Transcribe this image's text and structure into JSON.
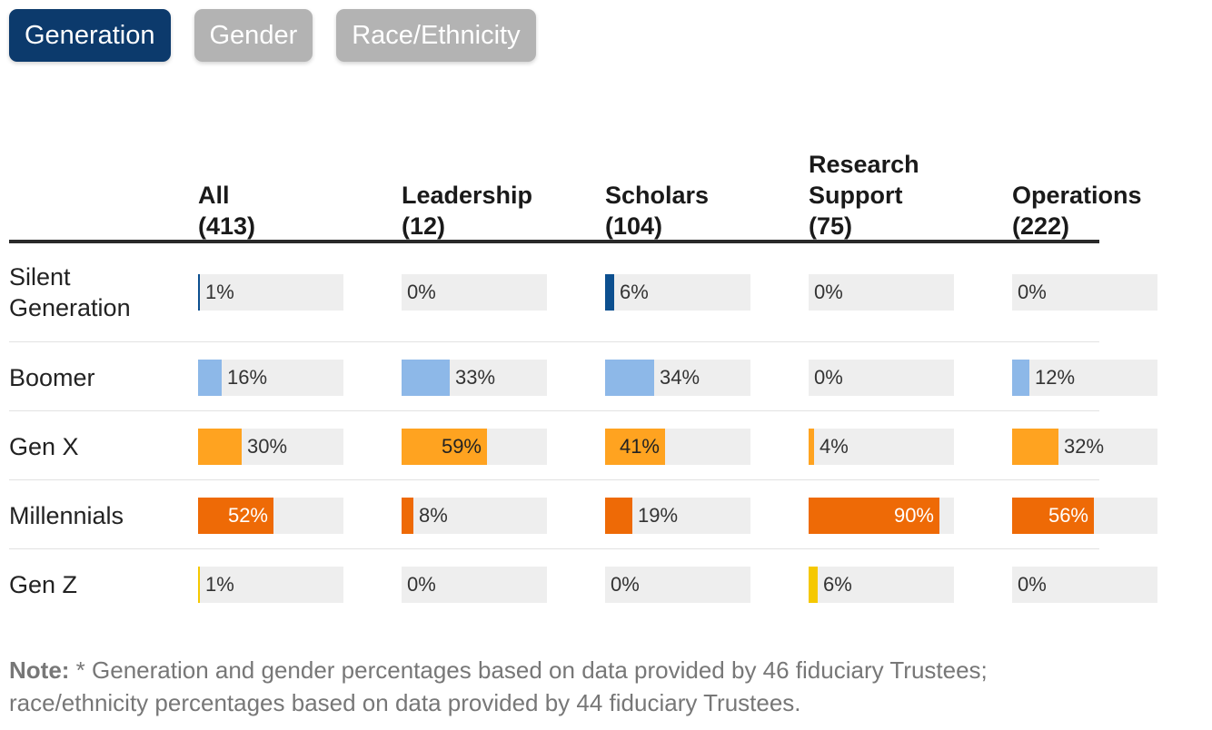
{
  "tabs": [
    {
      "label": "Generation",
      "active": true
    },
    {
      "label": "Gender",
      "active": false
    },
    {
      "label": "Race/Ethnicity",
      "active": false
    }
  ],
  "colors": {
    "active_tab": "#0c3a6c",
    "inactive_tab": "#b3b3b3",
    "track": "#eeeeee",
    "series": {
      "Silent Generation": "#0c4f8f",
      "Boomer": "#8db8e8",
      "Gen X": "#ffa320",
      "Millennials": "#ee6a06",
      "Gen Z": "#f5c800"
    }
  },
  "chart_data": {
    "type": "bar",
    "title": "",
    "columns": [
      {
        "name": "All",
        "count": "(413)"
      },
      {
        "name": "Leadership",
        "count": "(12)"
      },
      {
        "name": "Scholars",
        "count": "(104)"
      },
      {
        "name": "Research Support",
        "count": "(75)"
      },
      {
        "name": "Operations",
        "count": "(222)"
      }
    ],
    "categories": [
      "Silent Generation",
      "Boomer",
      "Gen X",
      "Millennials",
      "Gen Z"
    ],
    "series": [
      {
        "name": "Silent Generation",
        "values": [
          1,
          0,
          6,
          0,
          0
        ]
      },
      {
        "name": "Boomer",
        "values": [
          16,
          33,
          34,
          0,
          12
        ]
      },
      {
        "name": "Gen X",
        "values": [
          30,
          59,
          41,
          4,
          32
        ]
      },
      {
        "name": "Millennials",
        "values": [
          52,
          8,
          19,
          90,
          56
        ]
      },
      {
        "name": "Gen Z",
        "values": [
          1,
          0,
          0,
          6,
          0
        ]
      }
    ],
    "ylim": [
      0,
      100
    ],
    "unit": "%"
  },
  "note": {
    "label": "Note:",
    "text": "* Generation and gender percentages based on data provided by 46 fiduciary Trustees; race/ethnicity percentages based on data provided by 44 fiduciary Trustees."
  }
}
